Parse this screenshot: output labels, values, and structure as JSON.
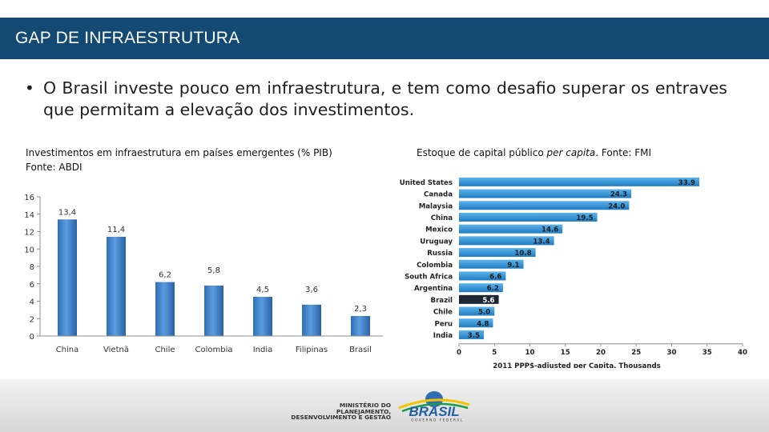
{
  "header": {
    "title": "GAP DE INFRAESTRUTURA"
  },
  "bullet": "O Brasil investe pouco em infraestrutura, e tem como desafio superar os entraves que permitam a elevação dos investimentos.",
  "left_caption": {
    "line1": "Investimentos em infraestrutura em países emergentes (% PIB)",
    "line2": "Fonte: ABDI"
  },
  "right_caption": {
    "before": "Estoque de capital público ",
    "italic": "per capita",
    "after": ". Fonte: FMI"
  },
  "footer": {
    "ministry_lines": [
      "MINISTÉRIO DO",
      "PLANEJAMENTO,",
      "DESENVOLVIMENTO E GESTÃO"
    ],
    "logo_text": "BRASIL",
    "logo_subtext": "GOVERNO FEDERAL"
  },
  "colors": {
    "title_bar": "#124a73",
    "bar_left": "#4a86c8",
    "bar_right": "#2e8ed2",
    "bar_highlight": "#1c2733"
  },
  "chart_data": [
    {
      "type": "bar",
      "orientation": "vertical",
      "categories": [
        "China",
        "Vietnã",
        "Chile",
        "Colombia",
        "India",
        "Filipinas",
        "Brasil"
      ],
      "values": [
        13.4,
        11.4,
        6.2,
        5.8,
        4.5,
        3.6,
        2.3
      ],
      "data_labels": [
        "13,4",
        "11,4",
        "6,2",
        "5,8",
        "4,5",
        "3,6",
        "2,3"
      ],
      "ylim": [
        0,
        16
      ],
      "y_ticks": [
        "0",
        "2",
        "4",
        "6",
        "8",
        "10",
        "12",
        "14",
        "16"
      ],
      "grid": false,
      "legend": "none"
    },
    {
      "type": "bar",
      "orientation": "horizontal",
      "categories": [
        "United States",
        "Canada",
        "Malaysia",
        "China",
        "Mexico",
        "Uruguay",
        "Russia",
        "Colombia",
        "South Africa",
        "Argentina",
        "Brazil",
        "Chile",
        "Peru",
        "India"
      ],
      "values": [
        33.9,
        24.3,
        24.0,
        19.5,
        14.6,
        13.4,
        10.8,
        9.1,
        6.6,
        6.2,
        5.6,
        5.0,
        4.8,
        3.5
      ],
      "data_labels": [
        "33.9",
        "24.3",
        "24.0",
        "19.5",
        "14.6",
        "13.4",
        "10.8",
        "9.1",
        "6.6",
        "6.2",
        "5.6",
        "5.0",
        "4.8",
        "3.5"
      ],
      "highlight": "Brazil",
      "xlim": [
        0,
        40
      ],
      "x_ticks": [
        "0",
        "5",
        "10",
        "15",
        "20",
        "25",
        "30",
        "35",
        "40"
      ],
      "xlabel": "2011 PPP$-adjusted per Capita, Thousands",
      "grid": false,
      "legend": "none"
    }
  ]
}
